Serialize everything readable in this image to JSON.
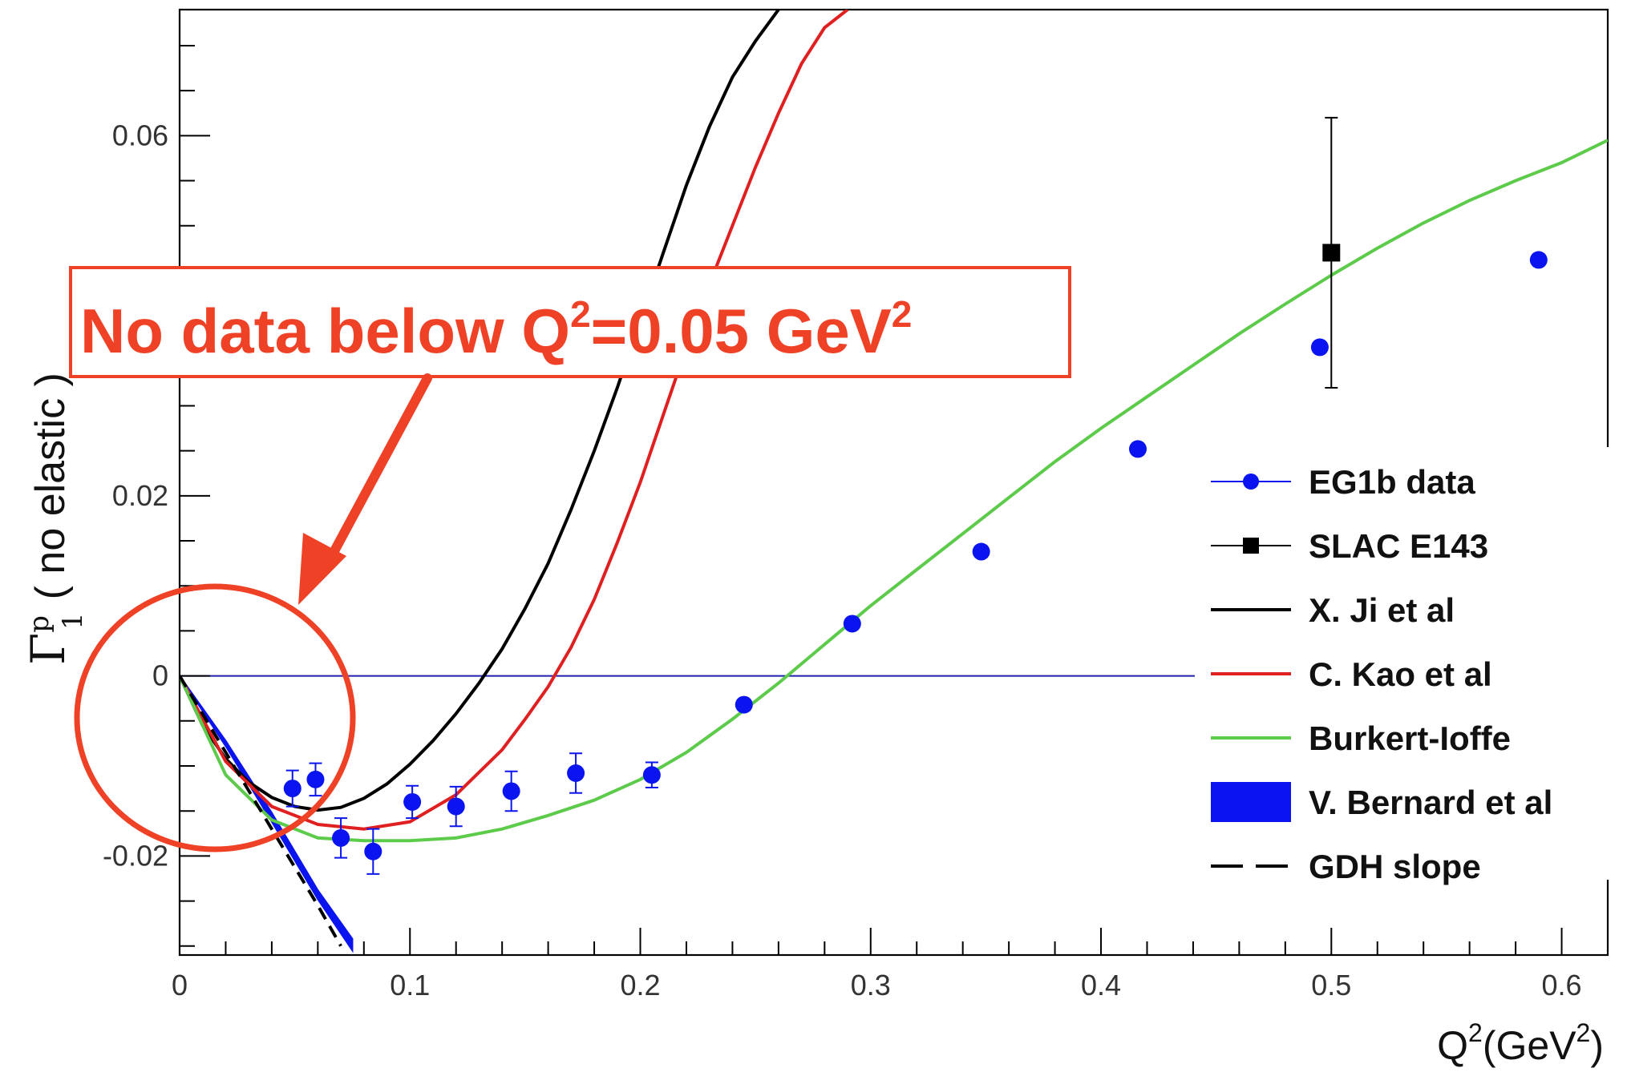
{
  "chart_data": {
    "type": "line",
    "title": "",
    "xlabel": {
      "base": "Q",
      "sup": "2",
      "rest": "(GeV",
      "sup2": "2",
      "close": ")"
    },
    "ylabel": {
      "base": "Γ",
      "sup": "p",
      "sub": "1",
      "rest": "( no elastic )"
    },
    "xlim": [
      0,
      0.62
    ],
    "ylim": [
      -0.031,
      0.074
    ],
    "x_ticks": [
      0,
      0.1,
      0.2,
      0.3,
      0.4,
      0.5,
      0.6
    ],
    "x_tick_labels": [
      "0",
      "0.1",
      "0.2",
      "0.3",
      "0.4",
      "0.5",
      "0.6"
    ],
    "y_ticks": [
      -0.02,
      0,
      0.02,
      0.06
    ],
    "y_tick_labels": [
      "-0.02",
      "0",
      "0.02",
      "0.06"
    ],
    "grid": false,
    "legend_position": "right",
    "series": [
      {
        "name": "EG1b data",
        "kind": "points",
        "marker": "circle",
        "color": "#0a14f0",
        "x": [
          0.049,
          0.059,
          0.07,
          0.084,
          0.101,
          0.12,
          0.144,
          0.172,
          0.205,
          0.245,
          0.292,
          0.348,
          0.416,
          0.495,
          0.59
        ],
        "y": [
          -0.0125,
          -0.0115,
          -0.018,
          -0.0195,
          -0.014,
          -0.0145,
          -0.0128,
          -0.0108,
          -0.011,
          -0.0032,
          0.0058,
          0.0138,
          0.0252,
          0.0365,
          0.0462
        ],
        "err": [
          0.002,
          0.0018,
          0.0022,
          0.0025,
          0.0018,
          0.0022,
          0.0022,
          0.0022,
          0.0014,
          0.0006,
          0.0006,
          0.0006,
          0.0006,
          0.0006,
          0.0006
        ]
      },
      {
        "name": "SLAC E143",
        "kind": "points",
        "marker": "square",
        "color": "#000000",
        "x": [
          0.5
        ],
        "y": [
          0.047
        ],
        "err": [
          0.015
        ]
      },
      {
        "name": "X. Ji et al",
        "kind": "line",
        "color": "#000000",
        "x": [
          0,
          0.01,
          0.02,
          0.03,
          0.04,
          0.05,
          0.06,
          0.07,
          0.08,
          0.09,
          0.1,
          0.11,
          0.12,
          0.13,
          0.14,
          0.15,
          0.16,
          0.17,
          0.18,
          0.19,
          0.2,
          0.21,
          0.22,
          0.23,
          0.24,
          0.25,
          0.26
        ],
        "y": [
          0,
          -0.0055,
          -0.0092,
          -0.0118,
          -0.0135,
          -0.0145,
          -0.0149,
          -0.0146,
          -0.0136,
          -0.012,
          -0.0098,
          -0.0072,
          -0.0042,
          -0.0008,
          0.003,
          0.0075,
          0.0125,
          0.0185,
          0.025,
          0.032,
          0.0395,
          0.047,
          0.0545,
          0.061,
          0.0665,
          0.0705,
          0.074
        ]
      },
      {
        "name": "C. Kao et al",
        "kind": "line",
        "color": "#e02020",
        "x": [
          0,
          0.02,
          0.04,
          0.06,
          0.08,
          0.1,
          0.12,
          0.14,
          0.15,
          0.16,
          0.17,
          0.18,
          0.19,
          0.2,
          0.21,
          0.22,
          0.23,
          0.24,
          0.25,
          0.26,
          0.27,
          0.28,
          0.29
        ],
        "y": [
          0,
          -0.0095,
          -0.0145,
          -0.0165,
          -0.017,
          -0.0162,
          -0.0132,
          -0.0082,
          -0.0048,
          -0.0012,
          0.0032,
          0.0085,
          0.0148,
          0.0215,
          0.029,
          0.0365,
          0.0435,
          0.05,
          0.0565,
          0.0625,
          0.068,
          0.072,
          0.074
        ]
      },
      {
        "name": "Burkert-Ioffe",
        "kind": "line",
        "color": "#5ccb4a",
        "x": [
          0,
          0.02,
          0.04,
          0.06,
          0.08,
          0.1,
          0.12,
          0.14,
          0.16,
          0.18,
          0.2,
          0.22,
          0.24,
          0.26,
          0.28,
          0.3,
          0.32,
          0.34,
          0.36,
          0.38,
          0.4,
          0.42,
          0.44,
          0.46,
          0.48,
          0.5,
          0.52,
          0.54,
          0.56,
          0.58,
          0.6,
          0.62
        ],
        "y": [
          0,
          -0.011,
          -0.016,
          -0.018,
          -0.0183,
          -0.0183,
          -0.018,
          -0.017,
          -0.0155,
          -0.0138,
          -0.0115,
          -0.0085,
          -0.0048,
          -0.0008,
          0.0035,
          0.0078,
          0.0118,
          0.0158,
          0.0198,
          0.0238,
          0.0275,
          0.031,
          0.0345,
          0.038,
          0.0413,
          0.0445,
          0.0475,
          0.0503,
          0.0528,
          0.055,
          0.057,
          0.0595
        ]
      },
      {
        "name": "V. Bernard et al",
        "kind": "band",
        "color": "#0a14f0",
        "x": [
          0,
          0.02,
          0.04,
          0.06,
          0.075
        ],
        "y_low": [
          0,
          -0.0078,
          -0.0162,
          -0.0248,
          -0.0305
        ],
        "y_high": [
          0,
          -0.0072,
          -0.0152,
          -0.0238,
          -0.0292
        ]
      },
      {
        "name": "GDH slope",
        "kind": "dashed",
        "color": "#000000",
        "x": [
          0,
          0.02,
          0.04,
          0.06,
          0.07
        ],
        "y": [
          0,
          -0.0085,
          -0.017,
          -0.0255,
          -0.03
        ]
      }
    ],
    "zero_line": {
      "y": 0,
      "x_end": 0.446,
      "color": "#2020b0"
    },
    "annotation": {
      "text_main": "No data below Q",
      "sup1": "2",
      "text_mid": "=0.05 GeV",
      "sup2": "2",
      "color": "#ee4126"
    }
  }
}
